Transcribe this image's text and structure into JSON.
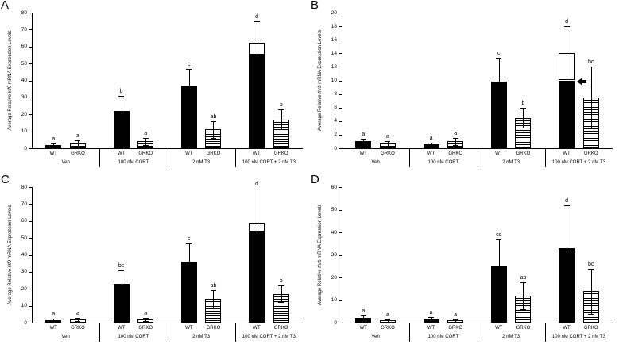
{
  "figure": {
    "genotype_labels": [
      "WT",
      "GRKO"
    ],
    "treatment_groups": [
      "Veh",
      "100 nM CORT",
      "2 nM T3",
      "100 nM CORT + 2 nM T3"
    ]
  },
  "chart_data": [
    {
      "type": "bar",
      "panel_label": "A",
      "ylabel_prefix": "Average Relative ",
      "gene": "klf9",
      "ylabel_suffix": " mRNA Expression Levels",
      "ylim": [
        0,
        80
      ],
      "ytick_step": 10,
      "groups": [
        "Veh",
        "100 nM CORT",
        "2 nM T3",
        "100 nM CORT + 2 nM T3"
      ],
      "series": [
        {
          "group": "Veh",
          "bars": [
            {
              "label": "WT",
              "style": "solid",
              "value": 2,
              "err": 1,
              "sig": "a"
            },
            {
              "label": "GRKO",
              "style": "hatched",
              "value": 3,
              "err": 1.5,
              "sig": "a"
            }
          ]
        },
        {
          "group": "100 nM CORT",
          "bars": [
            {
              "label": "WT",
              "style": "solid",
              "value": 22,
              "err": 9,
              "sig": "b"
            },
            {
              "label": "GRKO",
              "style": "hatched",
              "value": 4,
              "err": 2,
              "sig": "a"
            }
          ]
        },
        {
          "group": "2 nM T3",
          "bars": [
            {
              "label": "WT",
              "style": "solid",
              "value": 37,
              "err": 10,
              "sig": "c"
            },
            {
              "label": "GRKO",
              "style": "hatched",
              "value": 11,
              "err": 5,
              "sig": "ab"
            }
          ]
        },
        {
          "group": "100 nM CORT + 2 nM T3",
          "bars": [
            {
              "label": "WT",
              "style": "solid",
              "value": 55,
              "total": 62,
              "err": 13,
              "sig": "d"
            },
            {
              "label": "GRKO",
              "style": "hatched",
              "value": 17,
              "err": 6,
              "sig": "b"
            }
          ]
        }
      ],
      "annotations": []
    },
    {
      "type": "bar",
      "panel_label": "B",
      "ylabel_prefix": "Average Relative ",
      "gene": "thrb",
      "ylabel_suffix": " mRNA Expression Levels",
      "ylim": [
        0,
        20
      ],
      "ytick_step": 2,
      "groups": [
        "Veh",
        "100 nM CORT",
        "2 nM T3",
        "100 nM CORT + 2 nM T3"
      ],
      "series": [
        {
          "group": "Veh",
          "bars": [
            {
              "label": "WT",
              "style": "solid",
              "value": 1,
              "err": 0.4,
              "sig": "a"
            },
            {
              "label": "GRKO",
              "style": "hatched",
              "value": 0.7,
              "err": 0.3,
              "sig": "a"
            }
          ]
        },
        {
          "group": "100 nM CORT",
          "bars": [
            {
              "label": "WT",
              "style": "solid",
              "value": 0.6,
              "err": 0.2,
              "sig": "a"
            },
            {
              "label": "GRKO",
              "style": "hatched",
              "value": 1,
              "err": 0.5,
              "sig": "a"
            }
          ]
        },
        {
          "group": "2 nM T3",
          "bars": [
            {
              "label": "WT",
              "style": "solid",
              "value": 9.8,
              "err": 3.5,
              "sig": "c"
            },
            {
              "label": "GRKO",
              "style": "hatched",
              "value": 4.5,
              "err": 1.5,
              "sig": "b"
            }
          ]
        },
        {
          "group": "100 nM CORT + 2 nM T3",
          "bars": [
            {
              "label": "WT",
              "style": "solid",
              "value": 10,
              "total": 14,
              "err": 4,
              "sig": "d"
            },
            {
              "label": "GRKO",
              "style": "hatched",
              "value": 7.5,
              "err": 4.5,
              "sig": "bc"
            }
          ]
        }
      ],
      "annotations": [
        {
          "type": "arrow-left",
          "group_index": 3,
          "bar_index": 0,
          "at_value": 9.8
        }
      ]
    },
    {
      "type": "bar",
      "panel_label": "C",
      "ylabel_prefix": "Average Relative ",
      "gene": "klf9",
      "ylabel_suffix": " mRNA Expression Levels",
      "ylim": [
        0,
        80
      ],
      "ytick_step": 10,
      "groups": [
        "Veh",
        "100 nM CORT",
        "2 nM T3",
        "100 nM CORT + 2 nM T3"
      ],
      "series": [
        {
          "group": "Veh",
          "bars": [
            {
              "label": "WT",
              "style": "solid",
              "value": 1.5,
              "err": 1,
              "sig": "a"
            },
            {
              "label": "GRKO",
              "style": "hatched",
              "value": 2,
              "err": 1,
              "sig": "a"
            }
          ]
        },
        {
          "group": "100 nM CORT",
          "bars": [
            {
              "label": "WT",
              "style": "solid",
              "value": 23,
              "err": 8,
              "sig": "bc"
            },
            {
              "label": "GRKO",
              "style": "hatched",
              "value": 2,
              "err": 1,
              "sig": "a"
            }
          ]
        },
        {
          "group": "2 nM T3",
          "bars": [
            {
              "label": "WT",
              "style": "solid",
              "value": 36,
              "err": 11,
              "sig": "c"
            },
            {
              "label": "GRKO",
              "style": "hatched",
              "value": 14,
              "err": 5,
              "sig": "ab"
            }
          ]
        },
        {
          "group": "100 nM CORT + 2 nM T3",
          "bars": [
            {
              "label": "WT",
              "style": "solid",
              "value": 54,
              "total": 59,
              "err": 20,
              "sig": "d"
            },
            {
              "label": "GRKO",
              "style": "hatched",
              "value": 17,
              "err": 5,
              "sig": "b"
            }
          ]
        }
      ],
      "annotations": []
    },
    {
      "type": "bar",
      "panel_label": "D",
      "ylabel_prefix": "Average Relative ",
      "gene": "thrb",
      "ylabel_suffix": " mRNA Expression Levels",
      "ylim": [
        0,
        60
      ],
      "ytick_step": 10,
      "groups": [
        "Veh",
        "100 nM CORT",
        "2 nM T3",
        "100 nM CORT + 2 nM T3"
      ],
      "series": [
        {
          "group": "Veh",
          "bars": [
            {
              "label": "WT",
              "style": "solid",
              "value": 2,
              "err": 1,
              "sig": "a"
            },
            {
              "label": "GRKO",
              "style": "hatched",
              "value": 1,
              "err": 0.5,
              "sig": "a"
            }
          ]
        },
        {
          "group": "100 nM CORT",
          "bars": [
            {
              "label": "WT",
              "style": "solid",
              "value": 1.5,
              "err": 1,
              "sig": "a"
            },
            {
              "label": "GRKO",
              "style": "hatched",
              "value": 1,
              "err": 0.5,
              "sig": "a"
            }
          ]
        },
        {
          "group": "2 nM T3",
          "bars": [
            {
              "label": "WT",
              "style": "solid",
              "value": 25,
              "err": 12,
              "sig": "cd"
            },
            {
              "label": "GRKO",
              "style": "hatched",
              "value": 12,
              "err": 6,
              "sig": "ab"
            }
          ]
        },
        {
          "group": "100 nM CORT + 2 nM T3",
          "bars": [
            {
              "label": "WT",
              "style": "solid",
              "value": 33,
              "err": 19,
              "sig": "d"
            },
            {
              "label": "GRKO",
              "style": "hatched",
              "value": 14,
              "err": 10,
              "sig": "bc"
            }
          ]
        }
      ],
      "annotations": []
    }
  ]
}
